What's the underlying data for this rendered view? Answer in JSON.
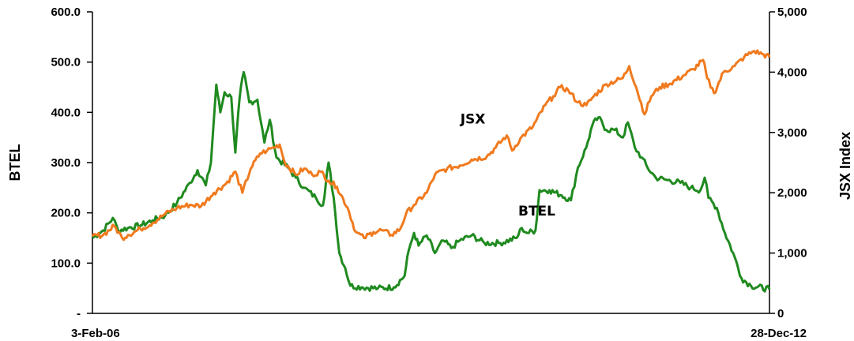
{
  "chart_data": {
    "type": "line",
    "title": "",
    "x_range": [
      "3-Feb-06",
      "28-Dec-12"
    ],
    "x_tick_labels": [
      "3-Feb-06",
      "28-Dec-12"
    ],
    "y_left": {
      "label": "BTEL",
      "range": [
        0,
        600
      ],
      "tick_labels": [
        "-",
        "100.0",
        "200.0",
        "300.0",
        "400.0",
        "500.0",
        "600.0"
      ]
    },
    "y_right": {
      "label": "JSX Index",
      "range": [
        0,
        5000
      ],
      "tick_labels": [
        "0",
        "1,000",
        "2,000",
        "3,000",
        "4,000",
        "5,000"
      ]
    },
    "grid": false,
    "legend": "none",
    "series": [
      {
        "name": "BTEL",
        "axis": "left",
        "color": "#1f8a1f",
        "label_at": [
          "2010-08-15",
          195
        ],
        "points": [
          [
            "2006-02-03",
            150
          ],
          [
            "2006-03-15",
            165
          ],
          [
            "2006-04-20",
            190
          ],
          [
            "2006-05-10",
            165
          ],
          [
            "2006-06-15",
            170
          ],
          [
            "2006-08-01",
            175
          ],
          [
            "2006-09-15",
            185
          ],
          [
            "2006-11-01",
            195
          ],
          [
            "2006-12-15",
            220
          ],
          [
            "2007-02-01",
            260
          ],
          [
            "2007-03-01",
            285
          ],
          [
            "2007-04-01",
            255
          ],
          [
            "2007-04-20",
            300
          ],
          [
            "2007-05-10",
            455
          ],
          [
            "2007-05-25",
            400
          ],
          [
            "2007-06-10",
            440
          ],
          [
            "2007-07-05",
            430
          ],
          [
            "2007-07-20",
            320
          ],
          [
            "2007-08-05",
            430
          ],
          [
            "2007-08-20",
            480
          ],
          [
            "2007-09-10",
            420
          ],
          [
            "2007-10-10",
            425
          ],
          [
            "2007-11-05",
            340
          ],
          [
            "2007-11-25",
            385
          ],
          [
            "2007-12-20",
            310
          ],
          [
            "2008-02-01",
            290
          ],
          [
            "2008-03-01",
            270
          ],
          [
            "2008-04-01",
            250
          ],
          [
            "2008-05-15",
            230
          ],
          [
            "2008-06-10",
            215
          ],
          [
            "2008-07-01",
            300
          ],
          [
            "2008-07-20",
            230
          ],
          [
            "2008-08-10",
            120
          ],
          [
            "2008-09-01",
            90
          ],
          [
            "2008-09-20",
            55
          ],
          [
            "2008-11-01",
            52
          ],
          [
            "2009-01-01",
            50
          ],
          [
            "2009-03-01",
            52
          ],
          [
            "2009-04-10",
            75
          ],
          [
            "2009-04-25",
            125
          ],
          [
            "2009-05-15",
            160
          ],
          [
            "2009-06-01",
            135
          ],
          [
            "2009-07-01",
            155
          ],
          [
            "2009-08-01",
            120
          ],
          [
            "2009-09-01",
            145
          ],
          [
            "2009-10-01",
            130
          ],
          [
            "2009-11-01",
            145
          ],
          [
            "2009-12-15",
            155
          ],
          [
            "2010-02-01",
            140
          ],
          [
            "2010-04-01",
            140
          ],
          [
            "2010-06-01",
            150
          ],
          [
            "2010-06-20",
            170
          ],
          [
            "2010-07-10",
            160
          ],
          [
            "2010-08-10",
            165
          ],
          [
            "2010-08-25",
            245
          ],
          [
            "2010-10-01",
            245
          ],
          [
            "2010-11-15",
            235
          ],
          [
            "2010-12-20",
            225
          ],
          [
            "2011-01-15",
            290
          ],
          [
            "2011-02-15",
            330
          ],
          [
            "2011-03-10",
            375
          ],
          [
            "2011-04-01",
            390
          ],
          [
            "2011-05-01",
            365
          ],
          [
            "2011-06-01",
            365
          ],
          [
            "2011-07-01",
            350
          ],
          [
            "2011-07-20",
            380
          ],
          [
            "2011-08-15",
            330
          ],
          [
            "2011-09-10",
            310
          ],
          [
            "2011-10-01",
            290
          ],
          [
            "2011-11-01",
            270
          ],
          [
            "2011-12-15",
            265
          ],
          [
            "2012-02-01",
            260
          ],
          [
            "2012-03-10",
            250
          ],
          [
            "2012-04-15",
            245
          ],
          [
            "2012-05-01",
            270
          ],
          [
            "2012-05-15",
            230
          ],
          [
            "2012-06-15",
            210
          ],
          [
            "2012-07-15",
            160
          ],
          [
            "2012-08-15",
            120
          ],
          [
            "2012-09-15",
            70
          ],
          [
            "2012-10-20",
            55
          ],
          [
            "2012-12-28",
            48
          ]
        ]
      },
      {
        "name": "JSX",
        "axis": "right",
        "color": "#f07a1e",
        "label_at": [
          "2009-12-20",
          3150
        ],
        "points": [
          [
            "2006-02-03",
            1280
          ],
          [
            "2006-03-15",
            1300
          ],
          [
            "2006-04-25",
            1450
          ],
          [
            "2006-05-25",
            1250
          ],
          [
            "2006-06-15",
            1300
          ],
          [
            "2006-08-01",
            1400
          ],
          [
            "2006-09-15",
            1500
          ],
          [
            "2006-11-01",
            1650
          ],
          [
            "2006-12-15",
            1750
          ],
          [
            "2007-02-01",
            1800
          ],
          [
            "2007-03-15",
            1780
          ],
          [
            "2007-05-01",
            2000
          ],
          [
            "2007-06-15",
            2150
          ],
          [
            "2007-07-20",
            2350
          ],
          [
            "2007-08-15",
            2000
          ],
          [
            "2007-09-15",
            2400
          ],
          [
            "2007-10-20",
            2650
          ],
          [
            "2007-11-15",
            2700
          ],
          [
            "2007-12-10",
            2750
          ],
          [
            "2008-01-01",
            2800
          ],
          [
            "2008-01-20",
            2500
          ],
          [
            "2008-03-01",
            2300
          ],
          [
            "2008-04-01",
            2400
          ],
          [
            "2008-05-01",
            2300
          ],
          [
            "2008-06-01",
            2350
          ],
          [
            "2008-07-01",
            2200
          ],
          [
            "2008-08-01",
            2100
          ],
          [
            "2008-09-10",
            1750
          ],
          [
            "2008-10-10",
            1350
          ],
          [
            "2008-11-10",
            1250
          ],
          [
            "2008-12-15",
            1350
          ],
          [
            "2009-01-15",
            1380
          ],
          [
            "2009-02-20",
            1300
          ],
          [
            "2009-03-25",
            1400
          ],
          [
            "2009-04-15",
            1650
          ],
          [
            "2009-05-15",
            1800
          ],
          [
            "2009-07-01",
            2000
          ],
          [
            "2009-08-01",
            2300
          ],
          [
            "2009-09-15",
            2400
          ],
          [
            "2009-11-01",
            2450
          ],
          [
            "2009-12-15",
            2550
          ],
          [
            "2010-02-10",
            2600
          ],
          [
            "2010-03-15",
            2750
          ],
          [
            "2010-04-25",
            2950
          ],
          [
            "2010-05-15",
            2700
          ],
          [
            "2010-06-15",
            2900
          ],
          [
            "2010-08-01",
            3100
          ],
          [
            "2010-09-15",
            3450
          ],
          [
            "2010-10-15",
            3600
          ],
          [
            "2010-11-10",
            3750
          ],
          [
            "2010-12-10",
            3700
          ],
          [
            "2011-01-15",
            3500
          ],
          [
            "2011-02-15",
            3450
          ],
          [
            "2011-03-15",
            3600
          ],
          [
            "2011-05-01",
            3800
          ],
          [
            "2011-07-01",
            3900
          ],
          [
            "2011-07-25",
            4100
          ],
          [
            "2011-08-20",
            3750
          ],
          [
            "2011-09-20",
            3300
          ],
          [
            "2011-10-15",
            3600
          ],
          [
            "2011-11-15",
            3750
          ],
          [
            "2011-12-20",
            3800
          ],
          [
            "2012-02-15",
            3950
          ],
          [
            "2012-03-20",
            4050
          ],
          [
            "2012-04-25",
            4200
          ],
          [
            "2012-05-10",
            3900
          ],
          [
            "2012-06-05",
            3650
          ],
          [
            "2012-07-10",
            4000
          ],
          [
            "2012-08-20",
            4100
          ],
          [
            "2012-09-25",
            4250
          ],
          [
            "2012-11-01",
            4350
          ],
          [
            "2012-12-01",
            4300
          ],
          [
            "2012-12-28",
            4250
          ]
        ]
      }
    ]
  }
}
